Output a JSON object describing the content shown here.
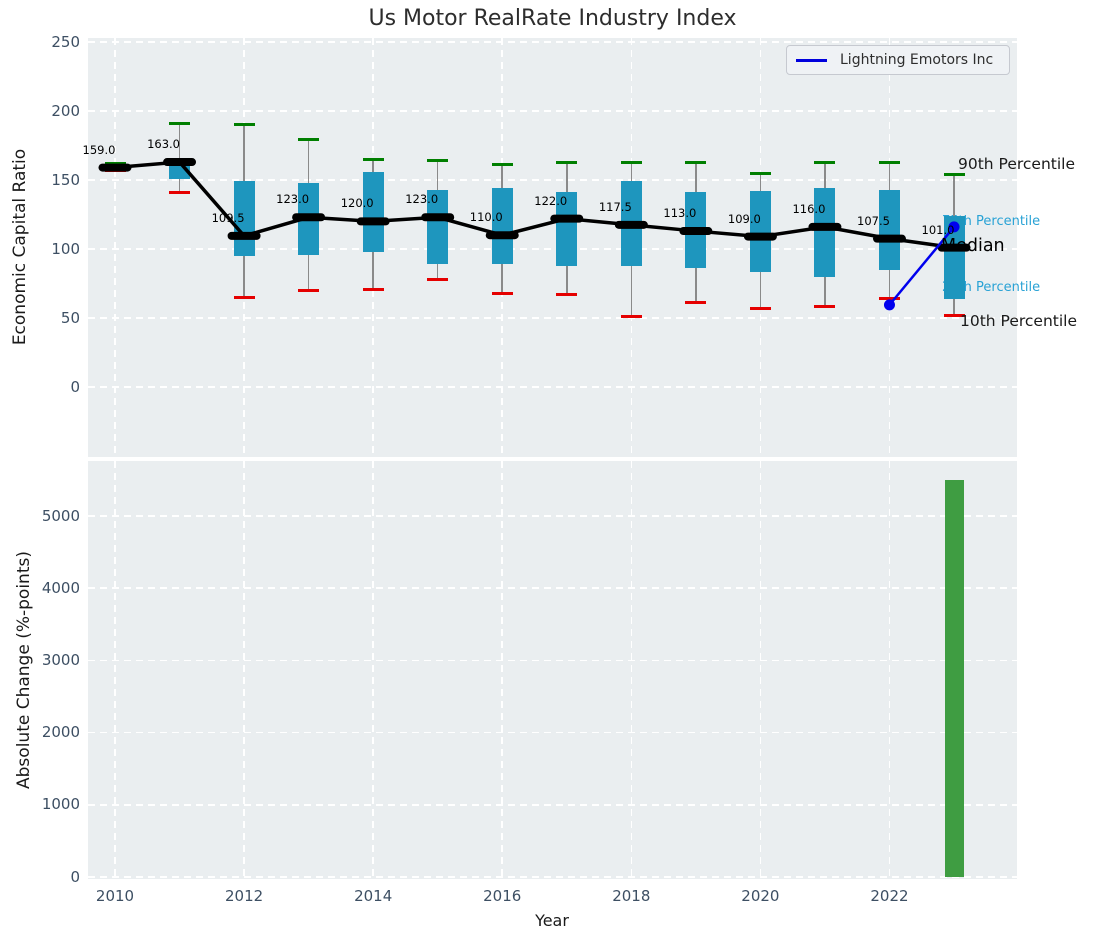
{
  "title": "Us Motor RealRate Industry Index",
  "legend": {
    "label": "Lightning Emotors Inc"
  },
  "axes": {
    "top": {
      "ylabel": "Economic Capital Ratio",
      "yticks": [
        "0",
        "50",
        "100",
        "150",
        "200",
        "250"
      ]
    },
    "bottom": {
      "ylabel": "Absolute Change (%-points)",
      "xlabel": "Year",
      "yticks": [
        "0",
        "1000",
        "2000",
        "3000",
        "4000",
        "5000"
      ],
      "xticks": [
        "2010",
        "2012",
        "2014",
        "2016",
        "2018",
        "2020",
        "2022"
      ]
    }
  },
  "annotations": [
    {
      "text": "90th Percentile",
      "stat": "p90",
      "color": "#1a1a1a"
    },
    {
      "text": "75th Percentile",
      "stat": "p75",
      "color": "#29a2d5"
    },
    {
      "text": "Median",
      "stat": "median",
      "color": "#000000"
    },
    {
      "text": "25th Percentile",
      "stat": "p25",
      "color": "#29a2d5"
    },
    {
      "text": "10th Percentile",
      "stat": "p10",
      "color": "#1a1a1a"
    }
  ],
  "colors": {
    "box": "#1e96be",
    "cap_high": "#007f00",
    "cap_low": "#e50000",
    "median_line": "#000000",
    "company_line": "#0000ee",
    "bar": "#3f9d42",
    "whisker": "#8a8a8a"
  },
  "chart_data": [
    {
      "type": "boxplot",
      "title": "Us Motor RealRate Industry Index",
      "ylabel": "Economic Capital Ratio",
      "ylim": [
        -50,
        253
      ],
      "grid": true,
      "legend_position": "upper right",
      "years": [
        2010,
        2011,
        2012,
        2013,
        2014,
        2015,
        2016,
        2017,
        2018,
        2019,
        2020,
        2021,
        2022,
        2023
      ],
      "series": {
        "p90": [
          162,
          191,
          190,
          179,
          165,
          164,
          161,
          163,
          163,
          163,
          155,
          163,
          163,
          154
        ],
        "p75": [
          160,
          161,
          149,
          148,
          156,
          143,
          144,
          141,
          149,
          141,
          142,
          144,
          143,
          124
        ],
        "median": [
          159,
          163,
          109.5,
          123,
          120,
          123,
          110,
          122,
          117.5,
          113,
          109,
          116,
          107.5,
          101
        ],
        "p25": [
          157,
          151,
          95,
          96,
          98,
          89,
          89,
          88,
          88,
          86,
          83,
          80,
          85,
          64
        ],
        "p10": [
          157,
          141,
          65,
          70,
          71,
          78,
          68,
          67,
          51,
          61,
          57,
          58,
          64,
          52
        ]
      },
      "median_labels": [
        "159.0",
        "163.0",
        "109.5",
        "123.0",
        "120.0",
        "123.0",
        "110.0",
        "122.0",
        "117.5",
        "113.0",
        "109.0",
        "116.0",
        "107.5",
        "101.0"
      ],
      "company": {
        "name": "Lightning Emotors Inc",
        "years": [
          2022,
          2023
        ],
        "values": [
          59.5,
          116
        ]
      }
    },
    {
      "type": "bar",
      "ylabel": "Absolute Change (%-points)",
      "xlabel": "Year",
      "ylim": [
        0,
        5750
      ],
      "grid": true,
      "categories": [
        2023
      ],
      "values": [
        5500
      ]
    }
  ]
}
